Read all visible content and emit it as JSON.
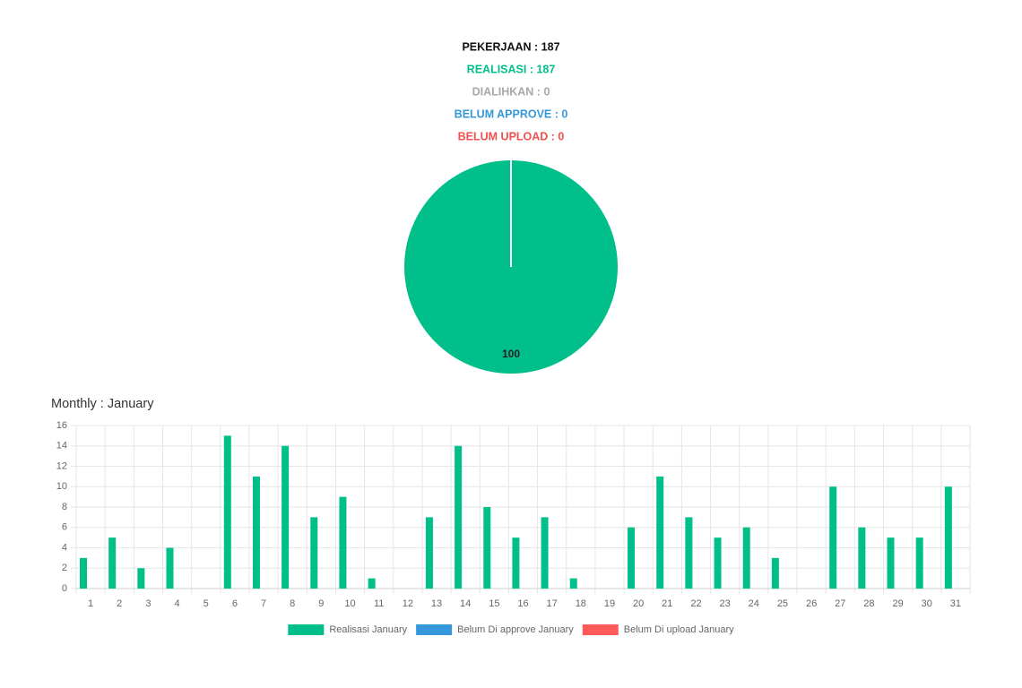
{
  "header": {
    "lines": [
      {
        "text": "PEKERJAAN : 187",
        "color": "#111111"
      },
      {
        "text": "REALISASI : 187",
        "color": "#00bf8a"
      },
      {
        "text": "DIALIHKAN : 0",
        "color": "#a8a8a8"
      },
      {
        "text": "BELUM APPROVE : 0",
        "color": "#3498db"
      },
      {
        "text": "BELUM UPLOAD : 0",
        "color": "#f05050"
      }
    ]
  },
  "chart_data": [
    {
      "type": "pie",
      "values": [
        100
      ],
      "colors": [
        "#00bf8a"
      ]
    },
    {
      "type": "bar",
      "title": "Monthly : January",
      "categories": [
        "1",
        "2",
        "3",
        "4",
        "5",
        "6",
        "7",
        "8",
        "9",
        "10",
        "11",
        "12",
        "13",
        "14",
        "15",
        "16",
        "17",
        "18",
        "19",
        "20",
        "21",
        "22",
        "23",
        "24",
        "25",
        "26",
        "27",
        "28",
        "29",
        "30",
        "31"
      ],
      "series": [
        {
          "name": "Realisasi January",
          "color": "#00bf8a",
          "values": [
            3,
            5,
            2,
            4,
            0,
            15,
            11,
            14,
            7,
            9,
            1,
            0,
            7,
            14,
            8,
            5,
            7,
            1,
            0,
            6,
            11,
            7,
            5,
            6,
            3,
            0,
            10,
            6,
            5,
            5,
            10
          ]
        },
        {
          "name": "Belum Di approve January",
          "color": "#3498db",
          "values": [
            0,
            0,
            0,
            0,
            0,
            0,
            0,
            0,
            0,
            0,
            0,
            0,
            0,
            0,
            0,
            0,
            0,
            0,
            0,
            0,
            0,
            0,
            0,
            0,
            0,
            0,
            0,
            0,
            0,
            0,
            0
          ]
        },
        {
          "name": "Belum Di upload January",
          "color": "#ff5a5a",
          "values": [
            0,
            0,
            0,
            0,
            0,
            0,
            0,
            0,
            0,
            0,
            0,
            0,
            0,
            0,
            0,
            0,
            0,
            0,
            0,
            0,
            0,
            0,
            0,
            0,
            0,
            0,
            0,
            0,
            0,
            0,
            0
          ]
        }
      ],
      "ylim": [
        0,
        16
      ],
      "yticks": [
        0,
        2,
        4,
        6,
        8,
        10,
        12,
        14,
        16
      ],
      "grid": true,
      "legend": "bottom"
    }
  ]
}
